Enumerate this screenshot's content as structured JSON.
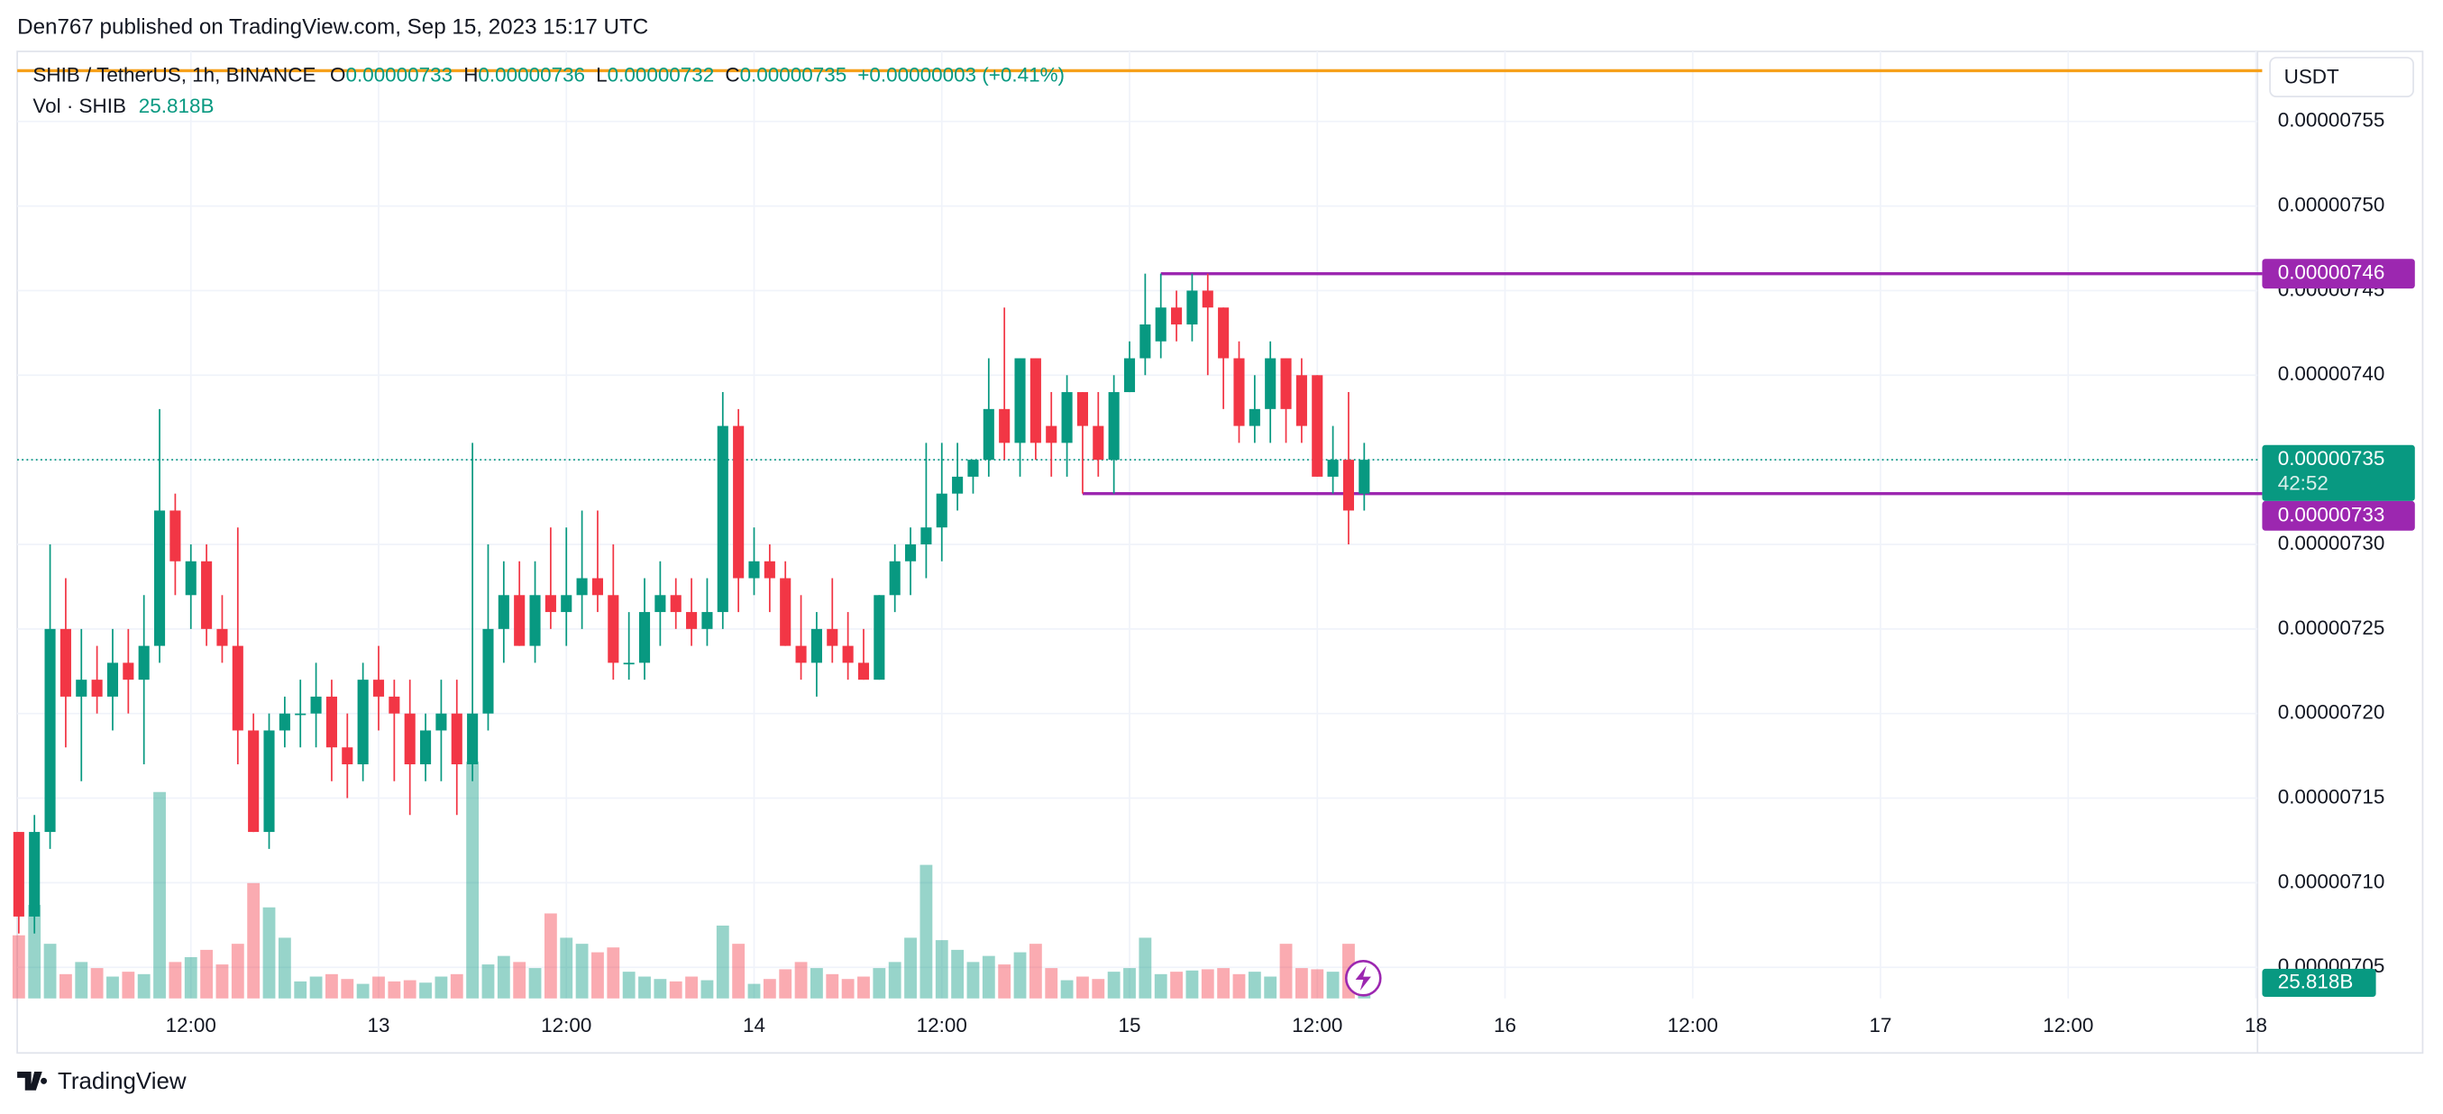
{
  "header": "Den767 published on TradingView.com, Sep 15, 2023 15:17 UTC",
  "footer": "TradingView",
  "chart_data": {
    "type": "candlestick",
    "title": "SHIB / TetherUS, 1h, BINANCE",
    "ohlc_labels": [
      "O",
      "H",
      "L",
      "C"
    ],
    "change": "+0.00000003 (+0.41%)",
    "volume_title": "Vol · SHIB",
    "volume_label": "25.818B",
    "currency": "USDT",
    "countdown": "42:52",
    "up_color": "#089981",
    "down_color": "#f23645",
    "grid": true,
    "open": [
      7.13e-06,
      7.08e-06,
      7.13e-06,
      7.25e-06,
      7.21e-06,
      7.22e-06,
      7.21e-06,
      7.23e-06,
      7.22e-06,
      7.24e-06,
      7.32e-06,
      7.27e-06,
      7.29e-06,
      7.25e-06,
      7.24e-06,
      7.19e-06,
      7.13e-06,
      7.19e-06,
      7.2e-06,
      7.2e-06,
      7.21e-06,
      7.18e-06,
      7.17e-06,
      7.22e-06,
      7.21e-06,
      7.2e-06,
      7.17e-06,
      7.19e-06,
      7.2e-06,
      7.17e-06,
      7.2e-06,
      7.25e-06,
      7.27e-06,
      7.24e-06,
      7.27e-06,
      7.26e-06,
      7.27e-06,
      7.28e-06,
      7.27e-06,
      7.23e-06,
      7.23e-06,
      7.26e-06,
      7.27e-06,
      7.26e-06,
      7.25e-06,
      7.26e-06,
      7.37e-06,
      7.28e-06,
      7.29e-06,
      7.28e-06,
      7.24e-06,
      7.23e-06,
      7.25e-06,
      7.24e-06,
      7.23e-06,
      7.22e-06,
      7.27e-06,
      7.29e-06,
      7.3e-06,
      7.31e-06,
      7.33e-06,
      7.34e-06,
      7.35e-06,
      7.38e-06,
      7.36e-06,
      7.41e-06,
      7.37e-06,
      7.36e-06,
      7.39e-06,
      7.37e-06,
      7.35e-06,
      7.39e-06,
      7.41e-06,
      7.42e-06,
      7.44e-06,
      7.43e-06,
      7.45e-06,
      7.44e-06,
      7.41e-06,
      7.37e-06,
      7.38e-06,
      7.41e-06,
      7.4e-06,
      7.4e-06,
      7.34e-06,
      7.35e-06,
      7.33e-06
    ],
    "high": [
      7.13e-06,
      7.14e-06,
      7.3e-06,
      7.28e-06,
      7.25e-06,
      7.24e-06,
      7.25e-06,
      7.25e-06,
      7.27e-06,
      7.38e-06,
      7.33e-06,
      7.3e-06,
      7.3e-06,
      7.27e-06,
      7.31e-06,
      7.2e-06,
      7.2e-06,
      7.21e-06,
      7.22e-06,
      7.23e-06,
      7.22e-06,
      7.2e-06,
      7.23e-06,
      7.24e-06,
      7.22e-06,
      7.22e-06,
      7.2e-06,
      7.22e-06,
      7.22e-06,
      7.36e-06,
      7.3e-06,
      7.29e-06,
      7.29e-06,
      7.29e-06,
      7.31e-06,
      7.31e-06,
      7.32e-06,
      7.32e-06,
      7.3e-06,
      7.26e-06,
      7.28e-06,
      7.29e-06,
      7.28e-06,
      7.28e-06,
      7.28e-06,
      7.39e-06,
      7.38e-06,
      7.31e-06,
      7.3e-06,
      7.29e-06,
      7.27e-06,
      7.26e-06,
      7.28e-06,
      7.26e-06,
      7.25e-06,
      7.27e-06,
      7.3e-06,
      7.31e-06,
      7.36e-06,
      7.36e-06,
      7.36e-06,
      7.35e-06,
      7.41e-06,
      7.44e-06,
      7.41e-06,
      7.41e-06,
      7.39e-06,
      7.4e-06,
      7.39e-06,
      7.39e-06,
      7.4e-06,
      7.42e-06,
      7.46e-06,
      7.46e-06,
      7.45e-06,
      7.46e-06,
      7.46e-06,
      7.44e-06,
      7.42e-06,
      7.4e-06,
      7.42e-06,
      7.41e-06,
      7.41e-06,
      7.4e-06,
      7.37e-06,
      7.39e-06,
      7.36e-06
    ],
    "low": [
      7.07e-06,
      7.07e-06,
      7.12e-06,
      7.18e-06,
      7.16e-06,
      7.2e-06,
      7.19e-06,
      7.2e-06,
      7.17e-06,
      7.23e-06,
      7.27e-06,
      7.25e-06,
      7.24e-06,
      7.23e-06,
      7.17e-06,
      7.13e-06,
      7.12e-06,
      7.18e-06,
      7.18e-06,
      7.18e-06,
      7.16e-06,
      7.15e-06,
      7.16e-06,
      7.19e-06,
      7.16e-06,
      7.14e-06,
      7.16e-06,
      7.16e-06,
      7.14e-06,
      7.16e-06,
      7.19e-06,
      7.23e-06,
      7.24e-06,
      7.23e-06,
      7.25e-06,
      7.24e-06,
      7.25e-06,
      7.26e-06,
      7.22e-06,
      7.22e-06,
      7.22e-06,
      7.24e-06,
      7.25e-06,
      7.24e-06,
      7.24e-06,
      7.25e-06,
      7.26e-06,
      7.27e-06,
      7.26e-06,
      7.24e-06,
      7.22e-06,
      7.21e-06,
      7.23e-06,
      7.22e-06,
      7.22e-06,
      7.22e-06,
      7.26e-06,
      7.27e-06,
      7.28e-06,
      7.29e-06,
      7.32e-06,
      7.33e-06,
      7.34e-06,
      7.35e-06,
      7.34e-06,
      7.35e-06,
      7.34e-06,
      7.34e-06,
      7.33e-06,
      7.34e-06,
      7.33e-06,
      7.39e-06,
      7.4e-06,
      7.41e-06,
      7.42e-06,
      7.42e-06,
      7.4e-06,
      7.38e-06,
      7.36e-06,
      7.36e-06,
      7.36e-06,
      7.36e-06,
      7.36e-06,
      7.34e-06,
      7.33e-06,
      7.3e-06,
      7.32e-06
    ],
    "close": [
      7.08e-06,
      7.13e-06,
      7.25e-06,
      7.21e-06,
      7.22e-06,
      7.21e-06,
      7.23e-06,
      7.22e-06,
      7.24e-06,
      7.32e-06,
      7.29e-06,
      7.29e-06,
      7.25e-06,
      7.24e-06,
      7.19e-06,
      7.13e-06,
      7.19e-06,
      7.2e-06,
      7.2e-06,
      7.21e-06,
      7.18e-06,
      7.17e-06,
      7.22e-06,
      7.21e-06,
      7.2e-06,
      7.17e-06,
      7.19e-06,
      7.2e-06,
      7.17e-06,
      7.2e-06,
      7.25e-06,
      7.27e-06,
      7.24e-06,
      7.27e-06,
      7.26e-06,
      7.27e-06,
      7.28e-06,
      7.27e-06,
      7.23e-06,
      7.23e-06,
      7.26e-06,
      7.27e-06,
      7.26e-06,
      7.25e-06,
      7.26e-06,
      7.37e-06,
      7.28e-06,
      7.29e-06,
      7.28e-06,
      7.24e-06,
      7.23e-06,
      7.25e-06,
      7.24e-06,
      7.23e-06,
      7.22e-06,
      7.27e-06,
      7.29e-06,
      7.3e-06,
      7.31e-06,
      7.33e-06,
      7.34e-06,
      7.35e-06,
      7.38e-06,
      7.36e-06,
      7.41e-06,
      7.36e-06,
      7.36e-06,
      7.39e-06,
      7.37e-06,
      7.35e-06,
      7.39e-06,
      7.41e-06,
      7.43e-06,
      7.44e-06,
      7.43e-06,
      7.45e-06,
      7.44e-06,
      7.41e-06,
      7.37e-06,
      7.38e-06,
      7.41e-06,
      7.38e-06,
      7.37e-06,
      7.34e-06,
      7.35e-06,
      7.32e-06,
      7.35e-06
    ],
    "volume": [
      52,
      77,
      45,
      20,
      30,
      25,
      18,
      22,
      20,
      170,
      30,
      34,
      40,
      28,
      45,
      95,
      75,
      50,
      14,
      18,
      20,
      16,
      12,
      18,
      14,
      15,
      13,
      18,
      20,
      195,
      28,
      35,
      30,
      25,
      70,
      50,
      45,
      38,
      42,
      22,
      18,
      16,
      14,
      18,
      15,
      60,
      45,
      12,
      16,
      24,
      30,
      25,
      20,
      16,
      18,
      25,
      30,
      50,
      110,
      48,
      40,
      30,
      35,
      28,
      38,
      45,
      25,
      15,
      18,
      16,
      22,
      25,
      50,
      20,
      22,
      23,
      24,
      25,
      20,
      22,
      18,
      45,
      25,
      24,
      22,
      45,
      25.818
    ],
    "hlines": [
      {
        "value": 7.58e-06,
        "color": "#f6a01a"
      },
      {
        "value": 7.46e-06,
        "from": 73,
        "color": "#9c27b0"
      },
      {
        "value": 7.33e-06,
        "from": 68,
        "color": "#9c27b0"
      }
    ],
    "xlim": [
      -0.1,
      143.1
    ],
    "xticks": [
      {
        "value": 11,
        "label": "12:00"
      },
      {
        "value": 23,
        "label": "13"
      },
      {
        "value": 35,
        "label": "12:00"
      },
      {
        "value": 47,
        "label": "14"
      },
      {
        "value": 59,
        "label": "12:00"
      },
      {
        "value": 71,
        "label": "15"
      },
      {
        "value": 83,
        "label": "12:00"
      },
      {
        "value": 95,
        "label": "16"
      },
      {
        "value": 107,
        "label": "12:00"
      },
      {
        "value": 119,
        "label": "17"
      },
      {
        "value": 131,
        "label": "12:00"
      },
      {
        "value": 143,
        "label": "18"
      }
    ],
    "ylim": [
      7.0316e-06,
      7.5914e-06
    ],
    "yticks": [
      7.05e-06,
      {
        "value": 7.1e-06,
        "label": "0.00000710"
      },
      7.15e-06,
      {
        "value": 7.2e-06,
        "label": "0.00000720"
      },
      7.25e-06,
      {
        "value": 7.3e-06,
        "label": "0.00000730"
      },
      7.35e-06,
      {
        "value": 7.4e-06,
        "label": "0.00000740"
      },
      7.45e-06,
      {
        "value": 7.5e-06,
        "label": "0.00000750"
      },
      7.55e-06
    ]
  }
}
